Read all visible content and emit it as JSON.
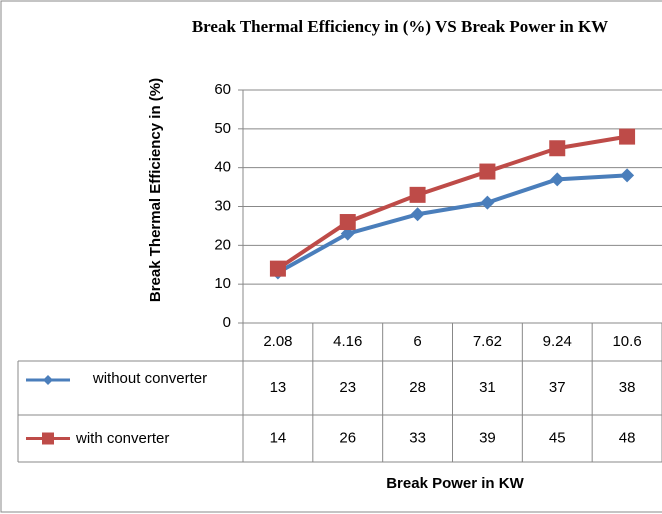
{
  "chart_data": {
    "type": "line",
    "title": "Break Thermal Efficiency in (%) VS Break Power in KW",
    "x_label": "Break Power in KW",
    "y_label": "Break Thermal Efficiency in (%)",
    "categories": [
      "2.08",
      "4.16",
      "6",
      "7.62",
      "9.24",
      "10.6"
    ],
    "series": [
      {
        "name": "without converter",
        "color": "#4a7ebb",
        "marker": "diamond",
        "values": [
          13,
          23,
          28,
          31,
          37,
          38
        ]
      },
      {
        "name": "with converter",
        "color": "#be4b48",
        "marker": "square",
        "values": [
          14,
          26,
          33,
          39,
          45,
          48
        ]
      }
    ],
    "ylim": [
      0,
      60
    ],
    "yticks": [
      0,
      10,
      20,
      30,
      40,
      50,
      60
    ],
    "grid": true,
    "data_table": true
  }
}
